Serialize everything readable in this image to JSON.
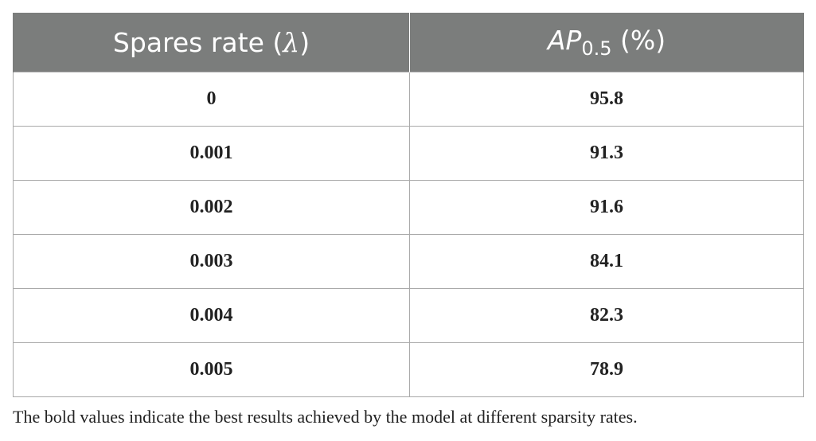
{
  "table": {
    "headers": [
      {
        "prefix": "Spares rate (",
        "symbol": "λ",
        "suffix": ")"
      },
      {
        "main": "AP",
        "sub": "0.5",
        "suffix": " (%)"
      }
    ],
    "rows": [
      {
        "rate": "0",
        "ap": "95.8"
      },
      {
        "rate": "0.001",
        "ap": "91.3"
      },
      {
        "rate": "0.002",
        "ap": "91.6"
      },
      {
        "rate": "0.003",
        "ap": "84.1"
      },
      {
        "rate": "0.004",
        "ap": "82.3"
      },
      {
        "rate": "0.005",
        "ap": "78.9"
      }
    ]
  },
  "footnote": "The bold values indicate the best results achieved by the model at different sparsity rates.",
  "colors": {
    "header_bg": "#7b7d7c",
    "header_text": "#ffffff",
    "border": "#a9a9a9",
    "text": "#222222"
  }
}
